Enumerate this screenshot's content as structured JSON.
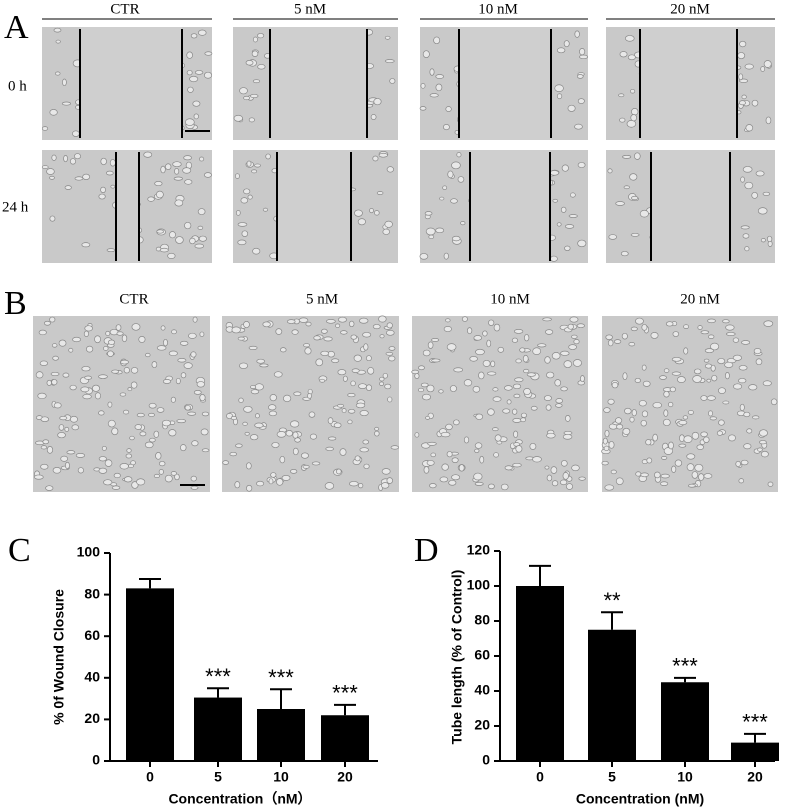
{
  "figure": {
    "panel_a": {
      "label": "A",
      "columns": [
        "CTR",
        "5 nM",
        "10 nM",
        "20 nM"
      ],
      "rows": [
        "0 h",
        "24 h"
      ]
    },
    "panel_b": {
      "label": "B",
      "columns": [
        "CTR",
        "5 nM",
        "10 nM",
        "20 nM"
      ]
    }
  },
  "chart_data": [
    {
      "type": "bar",
      "panel_label": "C",
      "categories": [
        "0",
        "5",
        "10",
        "20"
      ],
      "values": [
        83,
        30.5,
        25,
        22
      ],
      "errors": [
        4.5,
        4.5,
        9.5,
        5
      ],
      "significance": [
        null,
        "***",
        "***",
        "***"
      ],
      "color": "#000000",
      "ylim": [
        0,
        100
      ],
      "yticks": [
        0,
        20,
        40,
        60,
        80,
        100
      ],
      "ylabel": "% 0f Wound Closure",
      "xlabel": "Concentration（nM）"
    },
    {
      "type": "bar",
      "panel_label": "D",
      "categories": [
        "0",
        "5",
        "10",
        "20"
      ],
      "values": [
        100,
        75,
        45,
        10.5
      ],
      "errors": [
        11.5,
        10,
        2.5,
        5
      ],
      "significance": [
        null,
        "**",
        "***",
        "***"
      ],
      "color": "#000000",
      "ylim": [
        0,
        120
      ],
      "yticks": [
        0,
        20,
        40,
        60,
        80,
        100,
        120
      ],
      "ylabel": "Tube length (% of Control)",
      "xlabel": "Concentration (nM)"
    }
  ]
}
